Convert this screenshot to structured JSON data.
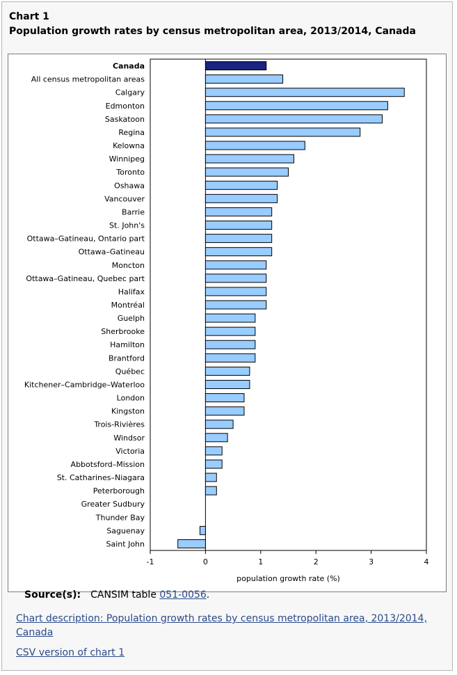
{
  "chart_number": "Chart 1",
  "chart_title": "Population growth rates by census metropolitan area, 2013/2014, Canada",
  "source": {
    "label": "Source(s):",
    "text": "CANSIM table ",
    "link_text": "051-0056",
    "suffix": "."
  },
  "links": {
    "description": "Chart description: Population growth rates by census metropolitan area, 2013/2014, Canada",
    "csv": "CSV version of chart 1"
  },
  "colors": {
    "highlight_bar": "#1a237e",
    "bar": "#99ccff",
    "bar_stroke": "#000000"
  },
  "chart_data": {
    "type": "bar",
    "orientation": "horizontal",
    "title": "",
    "xlabel": "population growth rate (%)",
    "ylabel": "",
    "xlim": [
      -1,
      4
    ],
    "xticks": [
      "-1",
      "0",
      "1",
      "2",
      "3",
      "4"
    ],
    "grid": false,
    "highlight_category": "Canada",
    "categories": [
      "Canada",
      "All census metropolitan areas",
      "Calgary",
      "Edmonton",
      "Saskatoon",
      "Regina",
      "Kelowna",
      "Winnipeg",
      "Toronto",
      "Oshawa",
      "Vancouver",
      "Barrie",
      "St. John's",
      "Ottawa–Gatineau, Ontario part",
      "Ottawa–Gatineau",
      "Moncton",
      "Ottawa–Gatineau, Quebec part",
      "Halifax",
      "Montréal",
      "Guelph",
      "Sherbrooke",
      "Hamilton",
      "Brantford",
      "Québec",
      "Kitchener–Cambridge–Waterloo",
      "London",
      "Kingston",
      "Trois-Rivières",
      "Windsor",
      "Victoria",
      "Abbotsford–Mission",
      "St. Catharines–Niagara",
      "Peterborough",
      "Greater Sudbury",
      "Thunder Bay",
      "Saguenay",
      "Saint John"
    ],
    "values": [
      1.1,
      1.4,
      3.6,
      3.3,
      3.2,
      2.8,
      1.8,
      1.6,
      1.5,
      1.3,
      1.3,
      1.2,
      1.2,
      1.2,
      1.2,
      1.1,
      1.1,
      1.1,
      1.1,
      0.9,
      0.9,
      0.9,
      0.9,
      0.8,
      0.8,
      0.7,
      0.7,
      0.5,
      0.4,
      0.3,
      0.3,
      0.2,
      0.2,
      0.0,
      0.0,
      -0.1,
      -0.5
    ]
  }
}
